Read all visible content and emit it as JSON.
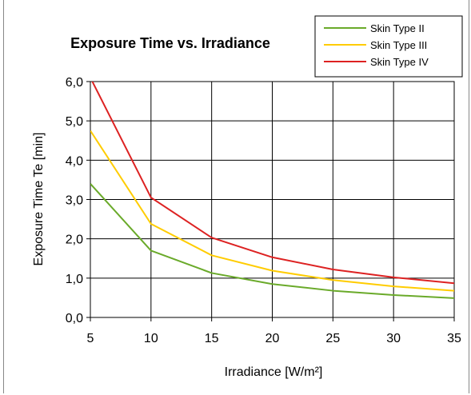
{
  "chart_data": {
    "type": "line",
    "title": "Exposure Time vs. Irradiance",
    "xlabel": "Irradiance [W/m²]",
    "ylabel": "Exposure Time Te [min]",
    "x": [
      5,
      10,
      15,
      20,
      25,
      30,
      35
    ],
    "xticks": [
      "5",
      "10",
      "15",
      "20",
      "25",
      "30",
      "35"
    ],
    "yticks": [
      "0,0",
      "1,0",
      "2,0",
      "3,0",
      "4,0",
      "5,0",
      "6,0"
    ],
    "xlim": [
      5,
      35
    ],
    "ylim": [
      0,
      6
    ],
    "grid": true,
    "legend_position": "top-right",
    "series": [
      {
        "name": "Skin Type II",
        "color": "#6aaa2a",
        "values": [
          3.4,
          1.7,
          1.13,
          0.85,
          0.68,
          0.57,
          0.49
        ]
      },
      {
        "name": "Skin Type III",
        "color": "#ffcc00",
        "values": [
          4.75,
          2.38,
          1.58,
          1.19,
          0.95,
          0.79,
          0.68
        ]
      },
      {
        "name": "Skin Type IV",
        "color": "#dd2222",
        "values": [
          6.1,
          3.05,
          2.03,
          1.53,
          1.22,
          1.02,
          0.87
        ]
      }
    ]
  }
}
